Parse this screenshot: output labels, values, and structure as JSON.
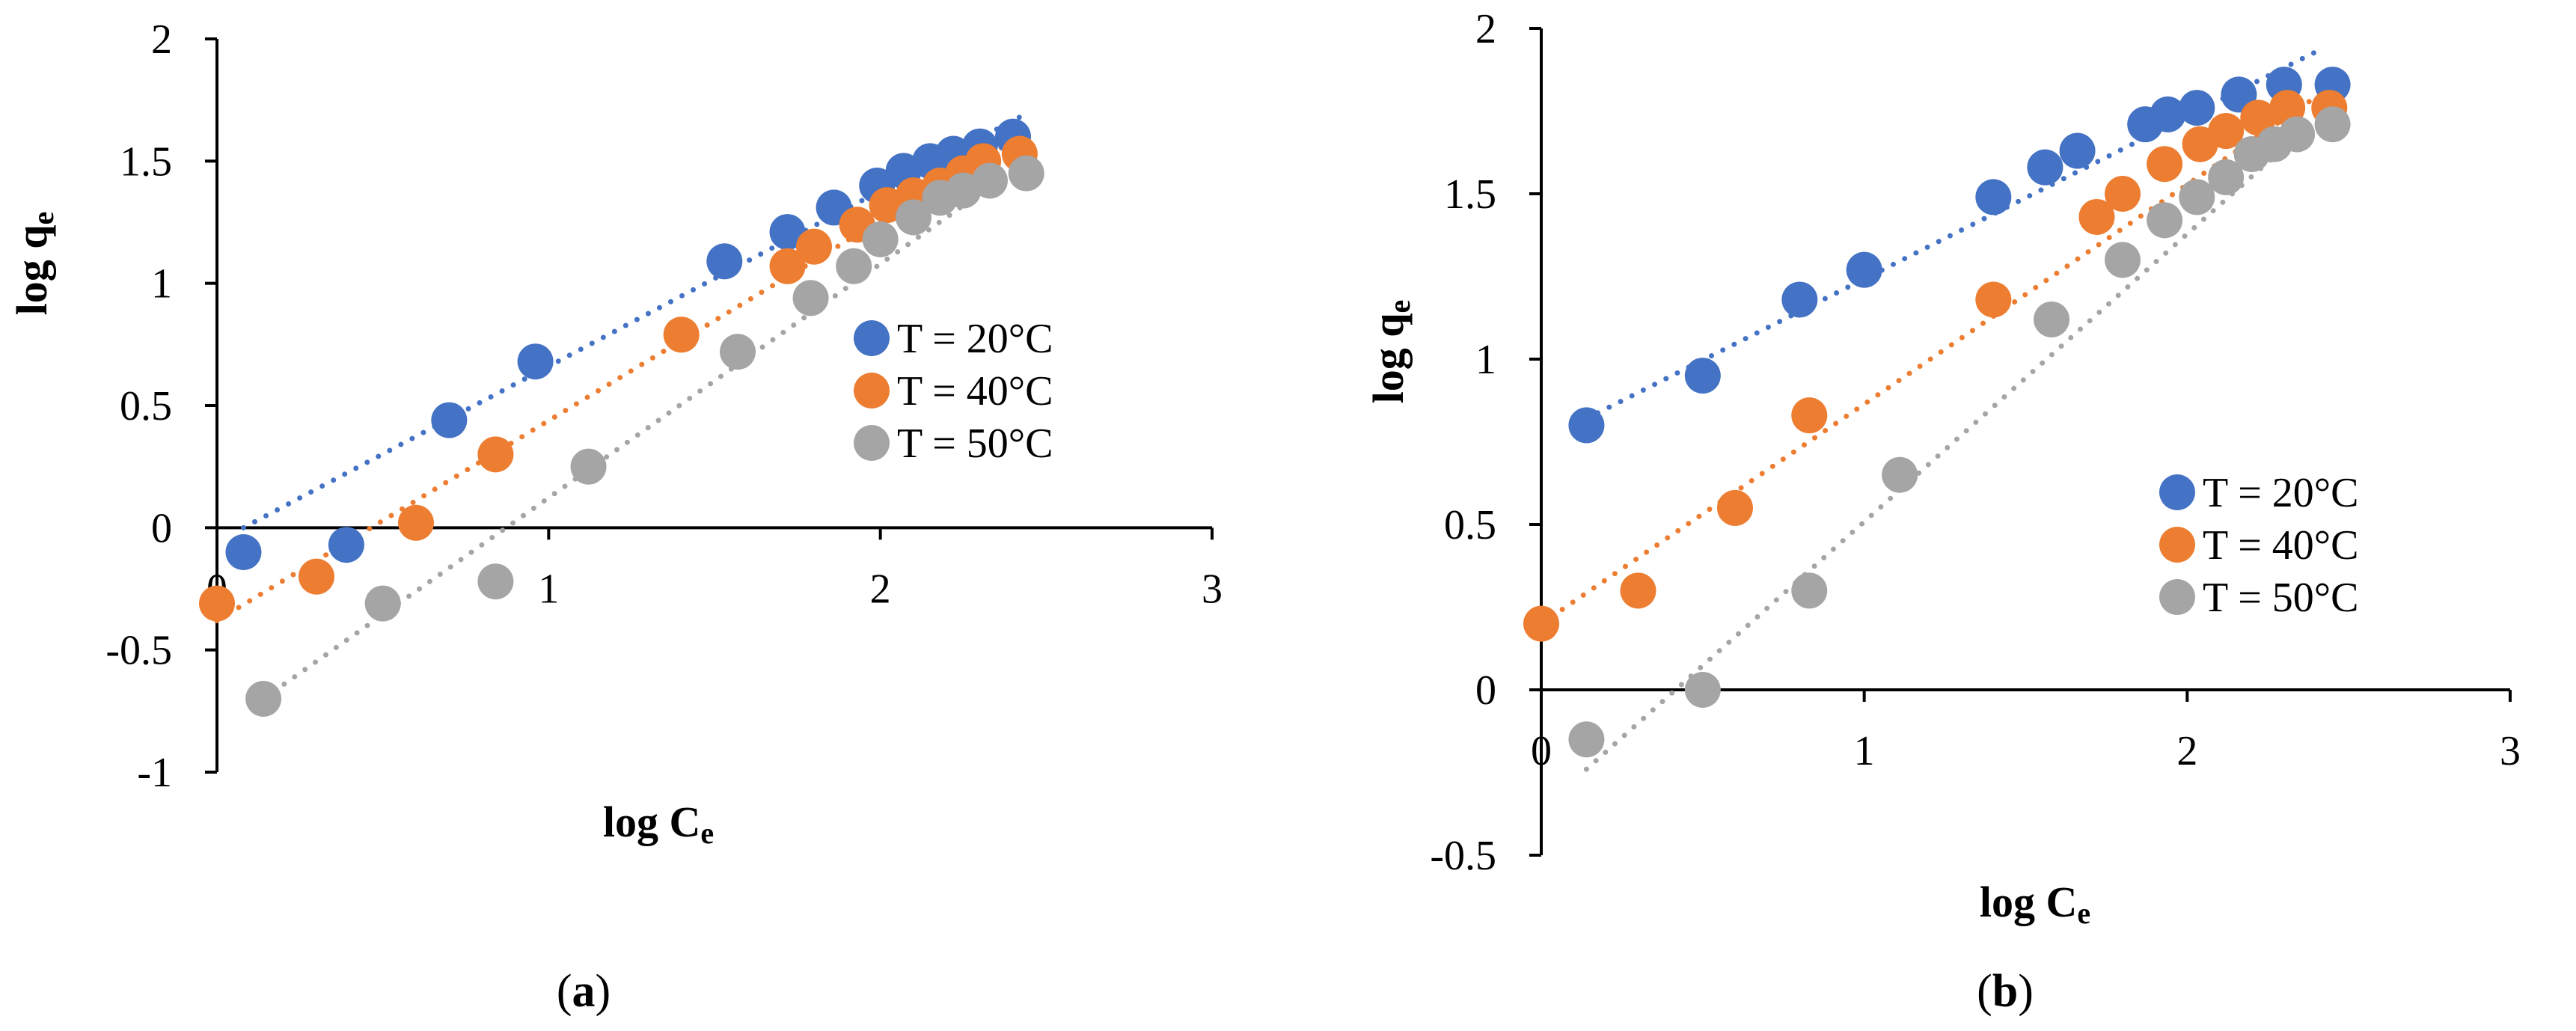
{
  "chart_data": [
    {
      "type": "scatter",
      "panel_label": "a",
      "xlabel": "log C",
      "xlabel_sub": "e",
      "ylabel": "log q",
      "ylabel_sub": "e",
      "xlim": [
        0,
        3
      ],
      "ylim": [
        -1,
        2
      ],
      "xticks": [
        0,
        1,
        2,
        3
      ],
      "yticks": [
        -1,
        -0.5,
        0,
        0.5,
        1,
        1.5,
        2
      ],
      "grid": false,
      "legend_position": "center-right",
      "trendline": "linear-dotted",
      "series": [
        {
          "name": "T = 20°C",
          "color": "#4472C4",
          "x": [
            0.08,
            0.39,
            0.7,
            0.96,
            1.53,
            1.72,
            1.86,
            1.99,
            2.07,
            2.15,
            2.22,
            2.3,
            2.4
          ],
          "y": [
            -0.1,
            -0.07,
            0.44,
            0.68,
            1.09,
            1.21,
            1.31,
            1.4,
            1.46,
            1.5,
            1.53,
            1.56,
            1.6
          ],
          "fit_x": [
            0.08,
            2.42
          ],
          "fit_y": [
            0.0,
            1.68
          ]
        },
        {
          "name": "T = 40°C",
          "color": "#ED7D31",
          "x": [
            0.0,
            0.3,
            0.6,
            0.84,
            1.4,
            1.72,
            1.8,
            1.93,
            2.02,
            2.1,
            2.18,
            2.25,
            2.31,
            2.42
          ],
          "y": [
            -0.31,
            -0.2,
            0.02,
            0.3,
            0.79,
            1.07,
            1.15,
            1.24,
            1.32,
            1.36,
            1.4,
            1.45,
            1.5,
            1.53
          ],
          "fit_x": [
            0.0,
            2.42
          ],
          "fit_y": [
            -0.38,
            1.6
          ]
        },
        {
          "name": "T = 50°C",
          "color": "#A5A5A5",
          "x": [
            0.14,
            0.5,
            0.84,
            1.12,
            1.57,
            1.79,
            1.92,
            2.0,
            2.1,
            2.18,
            2.25,
            2.33,
            2.44
          ],
          "y": [
            -0.7,
            -0.31,
            -0.22,
            0.25,
            0.72,
            0.94,
            1.07,
            1.18,
            1.27,
            1.35,
            1.38,
            1.42,
            1.45
          ],
          "fit_x": [
            0.14,
            2.44
          ],
          "fit_y": [
            -0.7,
            1.5
          ]
        }
      ]
    },
    {
      "type": "scatter",
      "panel_label": "b",
      "xlabel": "log C",
      "xlabel_sub": "e",
      "ylabel": "log q",
      "ylabel_sub": "e",
      "xlim": [
        0,
        3
      ],
      "ylim": [
        -0.5,
        2
      ],
      "xticks": [
        0,
        1,
        2,
        3
      ],
      "yticks": [
        -0.5,
        0,
        0.5,
        1,
        1.5,
        2
      ],
      "grid": false,
      "legend_position": "lower-right",
      "trendline": "linear-dotted",
      "series": [
        {
          "name": "T = 20°C",
          "color": "#4472C4",
          "x": [
            0.14,
            0.5,
            0.8,
            1.0,
            1.4,
            1.56,
            1.66,
            1.87,
            1.94,
            2.03,
            2.16,
            2.3,
            2.45
          ],
          "y": [
            0.8,
            0.95,
            1.18,
            1.27,
            1.49,
            1.58,
            1.63,
            1.71,
            1.74,
            1.76,
            1.8,
            1.83,
            1.83
          ],
          "fit_x": [
            0.14,
            2.4
          ],
          "fit_y": [
            0.82,
            1.93
          ]
        },
        {
          "name": "T = 40°C",
          "color": "#ED7D31",
          "x": [
            0.0,
            0.3,
            0.6,
            0.83,
            1.4,
            1.72,
            1.8,
            1.93,
            2.04,
            2.12,
            2.22,
            2.31,
            2.44
          ],
          "y": [
            0.2,
            0.3,
            0.55,
            0.83,
            1.18,
            1.43,
            1.5,
            1.59,
            1.65,
            1.69,
            1.73,
            1.76,
            1.76
          ],
          "fit_x": [
            0.0,
            2.44
          ],
          "fit_y": [
            0.2,
            1.82
          ]
        },
        {
          "name": "T = 50°C",
          "color": "#A5A5A5",
          "x": [
            0.14,
            0.5,
            0.83,
            1.11,
            1.58,
            1.8,
            1.93,
            2.03,
            2.12,
            2.2,
            2.27,
            2.34,
            2.45
          ],
          "y": [
            -0.15,
            0.0,
            0.3,
            0.65,
            1.12,
            1.3,
            1.42,
            1.49,
            1.55,
            1.62,
            1.65,
            1.68,
            1.71
          ],
          "fit_x": [
            0.14,
            2.45
          ],
          "fit_y": [
            -0.24,
            1.77
          ]
        }
      ]
    }
  ]
}
